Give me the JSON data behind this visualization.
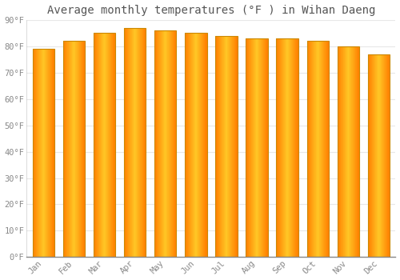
{
  "title": "Average monthly temperatures (°F ) in Wihan Daeng",
  "months": [
    "Jan",
    "Feb",
    "Mar",
    "Apr",
    "May",
    "Jun",
    "Jul",
    "Aug",
    "Sep",
    "Oct",
    "Nov",
    "Dec"
  ],
  "values": [
    79,
    82,
    85,
    87,
    86,
    85,
    84,
    83,
    83,
    82,
    80,
    77
  ],
  "ylim": [
    0,
    90
  ],
  "yticks": [
    0,
    10,
    20,
    30,
    40,
    50,
    60,
    70,
    80,
    90
  ],
  "ytick_labels": [
    "0°F",
    "10°F",
    "20°F",
    "30°F",
    "40°F",
    "50°F",
    "60°F",
    "70°F",
    "80°F",
    "90°F"
  ],
  "background_color": "#ffffff",
  "plot_bg_color": "#ffffff",
  "grid_color": "#e8e8e8",
  "bar_color_center": "#FFB700",
  "bar_color_edge": "#FF9500",
  "bar_outline_color": "#CC8800",
  "title_fontsize": 10,
  "tick_fontsize": 7.5,
  "tick_color": "#888888",
  "font_family": "monospace",
  "bar_width": 0.72
}
